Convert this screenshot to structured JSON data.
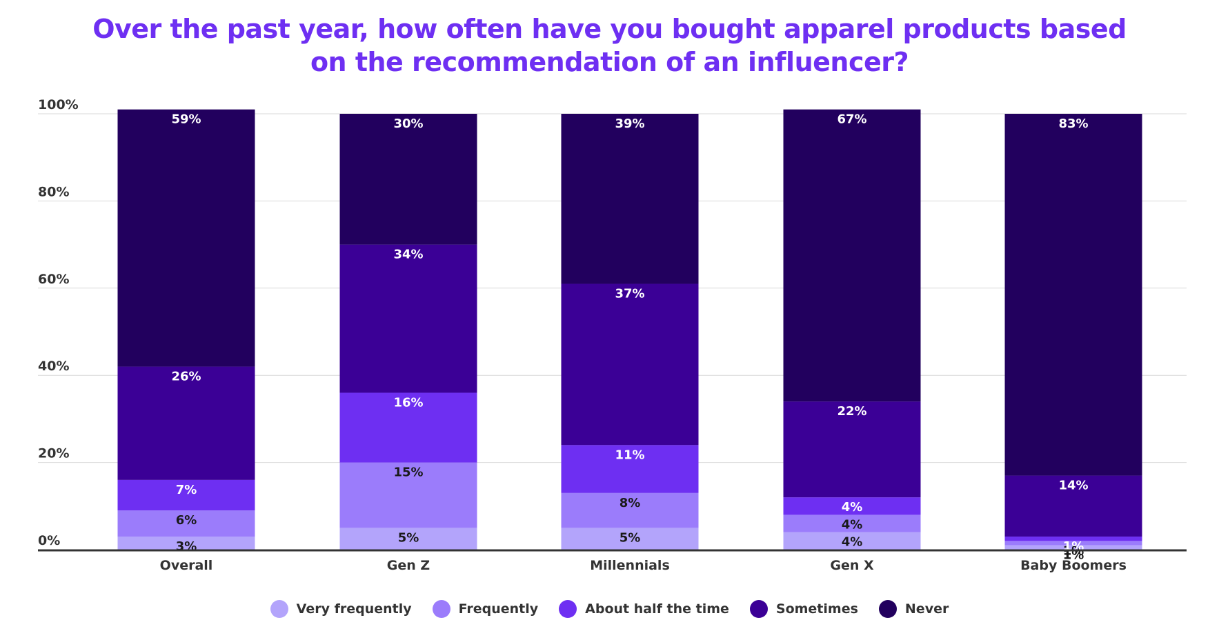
{
  "chart_data": {
    "type": "bar",
    "stacked": true,
    "title_lines": [
      "Over the past year, how often have you bought apparel products based",
      "on the recommendation of an influencer?"
    ],
    "categories": [
      "Overall",
      "Gen Z",
      "Millennials",
      "Gen X",
      "Baby Boomers"
    ],
    "series": [
      {
        "name": "Very frequently",
        "color": "#b3a4fb",
        "values": [
          3,
          5,
          5,
          4,
          1
        ],
        "labels": [
          "3%",
          "5%",
          "5%",
          "4%",
          "1%"
        ],
        "label_color": "#1a1a1a"
      },
      {
        "name": "Frequently",
        "color": "#9b7cfb",
        "values": [
          6,
          15,
          8,
          4,
          1
        ],
        "labels": [
          "6%",
          "15%",
          "8%",
          "4%",
          "1%"
        ],
        "label_color": "#1a1a1a"
      },
      {
        "name": "About half the time",
        "color": "#6e2ff2",
        "values": [
          7,
          16,
          11,
          4,
          1
        ],
        "labels": [
          "7%",
          "16%",
          "11%",
          "4%",
          "1%"
        ],
        "label_color": "#ffffff"
      },
      {
        "name": "Sometimes",
        "color": "#3b0096",
        "values": [
          26,
          34,
          37,
          22,
          14
        ],
        "labels": [
          "26%",
          "34%",
          "37%",
          "22%",
          "14%"
        ],
        "label_color": "#ffffff"
      },
      {
        "name": "Never",
        "color": "#22005e",
        "values": [
          59,
          30,
          39,
          67,
          83
        ],
        "labels": [
          "59%",
          "30%",
          "39%",
          "67%",
          "83%"
        ],
        "label_color": "#ffffff"
      }
    ],
    "y_ticks": [
      "0%",
      "20%",
      "40%",
      "60%",
      "80%",
      "100%"
    ],
    "ylim": [
      0,
      100
    ],
    "grid": true,
    "legend_position": "bottom-center",
    "xlabel": "",
    "ylabel": ""
  }
}
